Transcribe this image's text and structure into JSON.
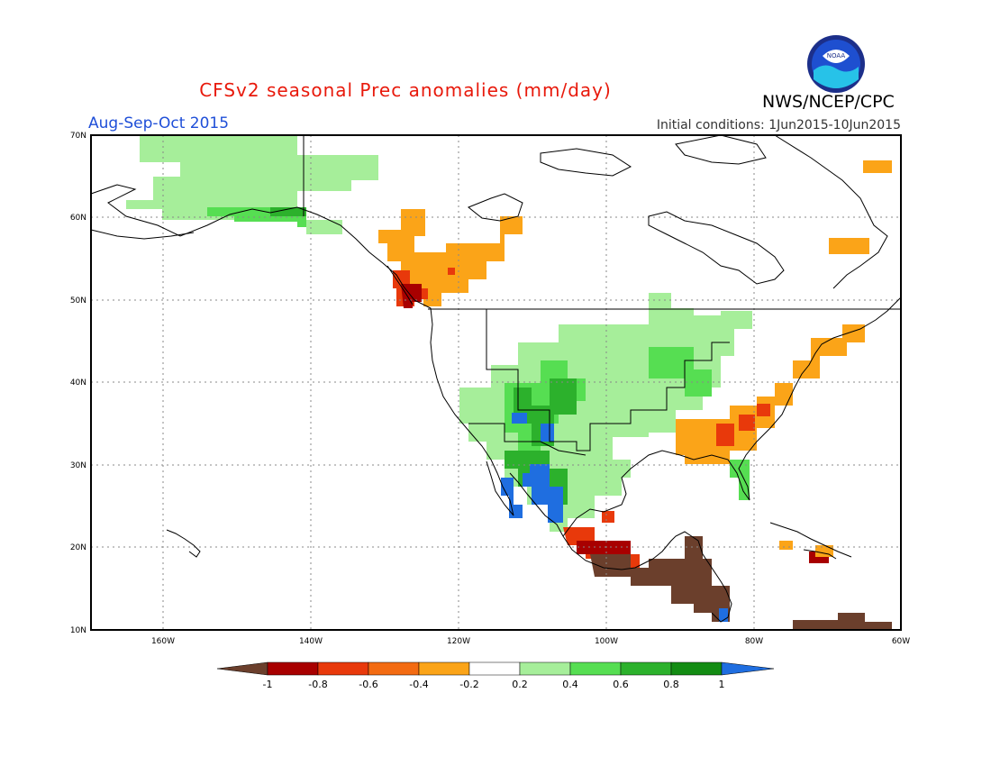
{
  "title": "CFSv2 seasonal Prec anomalies (mm/day)",
  "period": "Aug-Sep-Oct 2015",
  "initial_conditions": "Initial conditions: 1Jun2015-10Jun2015",
  "agency": "NWS/NCEP/CPC",
  "logo_text": "NOAA",
  "colors": {
    "title": "#e8190b",
    "period": "#1f4fd8",
    "brown": "#6b3f2c",
    "dark_red": "#a80000",
    "red": "#e8390b",
    "orange": "#fba418",
    "white": "#ffffff",
    "light_green": "#a6ee9a",
    "green": "#56de52",
    "mid_green": "#2cb12c",
    "dark_green": "#138c13",
    "blue": "#1f6ee0"
  },
  "lat_labels": [
    "70N",
    "60N",
    "50N",
    "40N",
    "30N",
    "20N",
    "10N"
  ],
  "lon_labels": [
    "160W",
    "140W",
    "120W",
    "100W",
    "80W",
    "60W"
  ],
  "legend": {
    "ticks": [
      "-1",
      "-0.8",
      "-0.6",
      "-0.4",
      "-0.2",
      "0.2",
      "0.4",
      "0.6",
      "0.8",
      "1"
    ],
    "colors": [
      "#a80000",
      "#e8390b",
      "#f36b12",
      "#fba418",
      "#ffffff",
      "#a6ee9a",
      "#56de52",
      "#2cb12c",
      "#138c13"
    ],
    "low_color": "#6b3f2c",
    "high_color": "#1f6ee0"
  }
}
